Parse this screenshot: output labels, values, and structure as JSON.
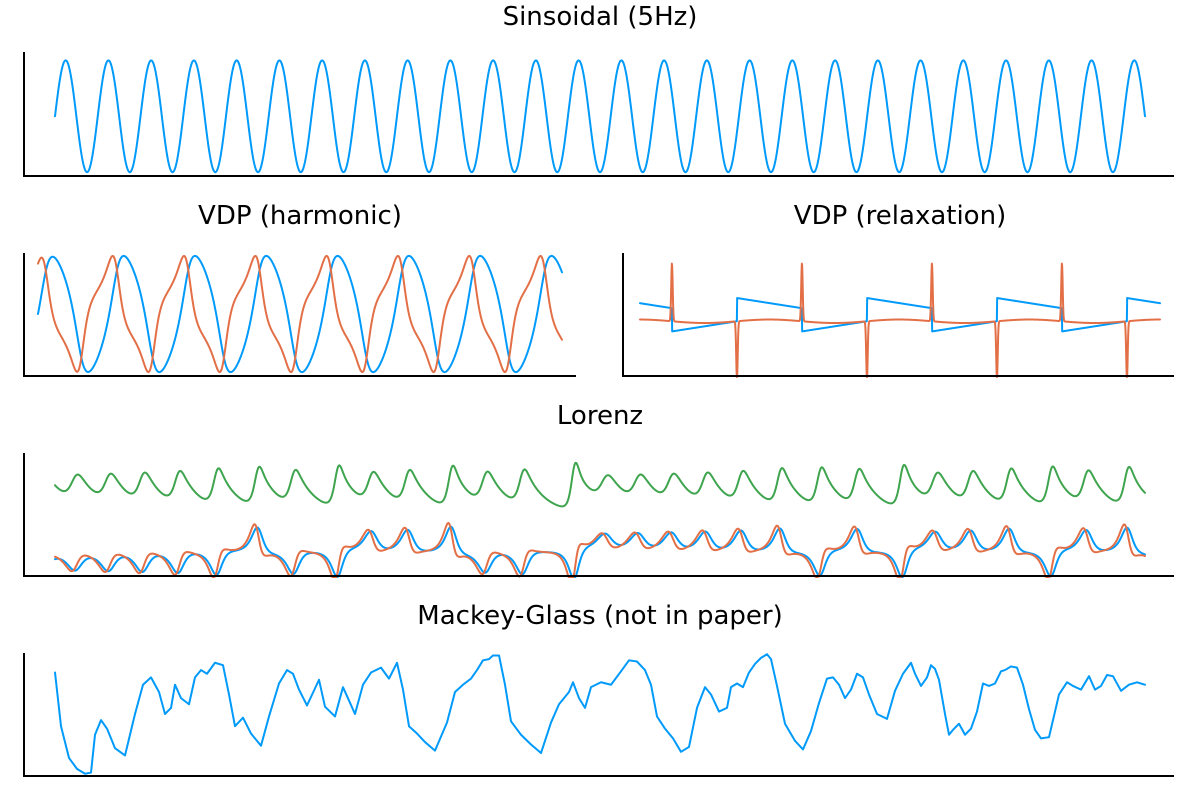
{
  "colors": {
    "blue": "#009AFA",
    "orange": "#E36F47",
    "green": "#3EA44E"
  },
  "chart_data": [
    {
      "id": "sin",
      "type": "line",
      "title": "Sinsoidal (5Hz)",
      "xlim": [
        0,
        5.1
      ],
      "ylim": [
        -1.05,
        1.15
      ],
      "series": [
        {
          "color": "blue",
          "kind": "sine",
          "freq": 5,
          "amp": 1,
          "phase": 0
        }
      ]
    },
    {
      "id": "vdp_h",
      "type": "line",
      "title": "VDP (harmonic)",
      "xlim": [
        0,
        47.2
      ],
      "ylim": [
        -2.1,
        2.1
      ],
      "series": [
        {
          "color": "blue",
          "kind": "vdp_x",
          "mu": 0.6
        },
        {
          "color": "orange",
          "kind": "vdp_v",
          "mu": 0.6
        }
      ]
    },
    {
      "id": "vdp_r",
      "type": "line",
      "title": "VDP (relaxation)",
      "xlim": [
        0,
        47.2
      ],
      "ylim": [
        -2.1,
        2.1
      ],
      "series": [
        {
          "color": "blue",
          "kind": "relax_x"
        },
        {
          "color": "orange",
          "kind": "relax_v"
        }
      ]
    },
    {
      "id": "lorenz",
      "type": "line",
      "title": "Lorenz",
      "xlim": [
        0,
        1090
      ],
      "ylim": [
        -1,
        1
      ],
      "series": [
        {
          "color": "green",
          "kind": "lorenz_z"
        },
        {
          "color": "blue",
          "kind": "lorenz_x"
        },
        {
          "color": "orange",
          "kind": "lorenz_y"
        }
      ]
    },
    {
      "id": "mg",
      "type": "line",
      "title": "Mackey-Glass (not in paper)",
      "xlim": [
        0,
        1090
      ],
      "ylim": [
        0,
        1
      ],
      "series": [
        {
          "color": "blue",
          "kind": "points",
          "points": [
            [
              0,
              0.84
            ],
            [
              6,
              0.4
            ],
            [
              14,
              0.14
            ],
            [
              22,
              0.05
            ],
            [
              30,
              0.01
            ],
            [
              36,
              0.02
            ],
            [
              40,
              0.33
            ],
            [
              46,
              0.45
            ],
            [
              52,
              0.38
            ],
            [
              60,
              0.22
            ],
            [
              70,
              0.16
            ],
            [
              80,
              0.5
            ],
            [
              88,
              0.74
            ],
            [
              96,
              0.8
            ],
            [
              104,
              0.68
            ],
            [
              110,
              0.5
            ],
            [
              116,
              0.55
            ],
            [
              120,
              0.74
            ],
            [
              126,
              0.63
            ],
            [
              134,
              0.58
            ],
            [
              140,
              0.8
            ],
            [
              146,
              0.86
            ],
            [
              152,
              0.83
            ],
            [
              160,
              0.92
            ],
            [
              168,
              0.9
            ],
            [
              174,
              0.66
            ],
            [
              180,
              0.4
            ],
            [
              188,
              0.47
            ],
            [
              196,
              0.34
            ],
            [
              206,
              0.24
            ],
            [
              214,
              0.48
            ],
            [
              224,
              0.75
            ],
            [
              232,
              0.86
            ],
            [
              238,
              0.83
            ],
            [
              244,
              0.7
            ],
            [
              252,
              0.57
            ],
            [
              260,
              0.71
            ],
            [
              264,
              0.78
            ],
            [
              270,
              0.56
            ],
            [
              280,
              0.48
            ],
            [
              288,
              0.72
            ],
            [
              294,
              0.61
            ],
            [
              300,
              0.5
            ],
            [
              308,
              0.74
            ],
            [
              316,
              0.84
            ],
            [
              326,
              0.88
            ],
            [
              334,
              0.79
            ],
            [
              342,
              0.92
            ],
            [
              348,
              0.7
            ],
            [
              354,
              0.4
            ],
            [
              362,
              0.34
            ],
            [
              370,
              0.27
            ],
            [
              380,
              0.2
            ],
            [
              392,
              0.43
            ],
            [
              400,
              0.68
            ],
            [
              408,
              0.74
            ],
            [
              416,
              0.79
            ],
            [
              422,
              0.86
            ],
            [
              428,
              0.94
            ],
            [
              434,
              0.95
            ],
            [
              438,
              0.98
            ],
            [
              444,
              0.98
            ],
            [
              450,
              0.74
            ],
            [
              456,
              0.44
            ],
            [
              466,
              0.33
            ],
            [
              476,
              0.25
            ],
            [
              486,
              0.18
            ],
            [
              496,
              0.43
            ],
            [
              504,
              0.58
            ],
            [
              514,
              0.68
            ],
            [
              518,
              0.76
            ],
            [
              524,
              0.63
            ],
            [
              530,
              0.55
            ],
            [
              536,
              0.72
            ],
            [
              546,
              0.76
            ],
            [
              556,
              0.74
            ],
            [
              566,
              0.85
            ],
            [
              574,
              0.94
            ],
            [
              582,
              0.93
            ],
            [
              590,
              0.86
            ],
            [
              596,
              0.74
            ],
            [
              602,
              0.48
            ],
            [
              610,
              0.38
            ],
            [
              618,
              0.3
            ],
            [
              626,
              0.19
            ],
            [
              634,
              0.23
            ],
            [
              642,
              0.55
            ],
            [
              650,
              0.72
            ],
            [
              656,
              0.66
            ],
            [
              664,
              0.52
            ],
            [
              672,
              0.55
            ],
            [
              676,
              0.72
            ],
            [
              682,
              0.75
            ],
            [
              688,
              0.72
            ],
            [
              694,
              0.84
            ],
            [
              700,
              0.91
            ],
            [
              706,
              0.96
            ],
            [
              712,
              0.99
            ],
            [
              716,
              0.95
            ],
            [
              722,
              0.73
            ],
            [
              730,
              0.42
            ],
            [
              740,
              0.28
            ],
            [
              748,
              0.21
            ],
            [
              756,
              0.36
            ],
            [
              764,
              0.59
            ],
            [
              772,
              0.79
            ],
            [
              778,
              0.8
            ],
            [
              784,
              0.74
            ],
            [
              790,
              0.63
            ],
            [
              796,
              0.7
            ],
            [
              802,
              0.83
            ],
            [
              808,
              0.8
            ],
            [
              814,
              0.66
            ],
            [
              822,
              0.5
            ],
            [
              832,
              0.46
            ],
            [
              840,
              0.69
            ],
            [
              848,
              0.83
            ],
            [
              856,
              0.92
            ],
            [
              860,
              0.83
            ],
            [
              866,
              0.73
            ],
            [
              872,
              0.8
            ],
            [
              876,
              0.9
            ],
            [
              880,
              0.87
            ],
            [
              884,
              0.78
            ],
            [
              890,
              0.5
            ],
            [
              894,
              0.33
            ],
            [
              898,
              0.37
            ],
            [
              904,
              0.42
            ],
            [
              910,
              0.33
            ],
            [
              916,
              0.38
            ],
            [
              922,
              0.52
            ],
            [
              928,
              0.75
            ],
            [
              934,
              0.73
            ],
            [
              940,
              0.75
            ],
            [
              946,
              0.85
            ],
            [
              950,
              0.86
            ],
            [
              956,
              0.89
            ],
            [
              962,
              0.88
            ],
            [
              968,
              0.74
            ],
            [
              974,
              0.54
            ],
            [
              980,
              0.37
            ],
            [
              986,
              0.3
            ],
            [
              994,
              0.31
            ],
            [
              1004,
              0.66
            ],
            [
              1012,
              0.76
            ],
            [
              1018,
              0.73
            ],
            [
              1026,
              0.7
            ],
            [
              1034,
              0.81
            ],
            [
              1040,
              0.7
            ],
            [
              1046,
              0.73
            ],
            [
              1052,
              0.82
            ],
            [
              1058,
              0.81
            ],
            [
              1066,
              0.69
            ],
            [
              1074,
              0.74
            ],
            [
              1082,
              0.76
            ],
            [
              1090,
              0.74
            ]
          ]
        }
      ]
    }
  ]
}
